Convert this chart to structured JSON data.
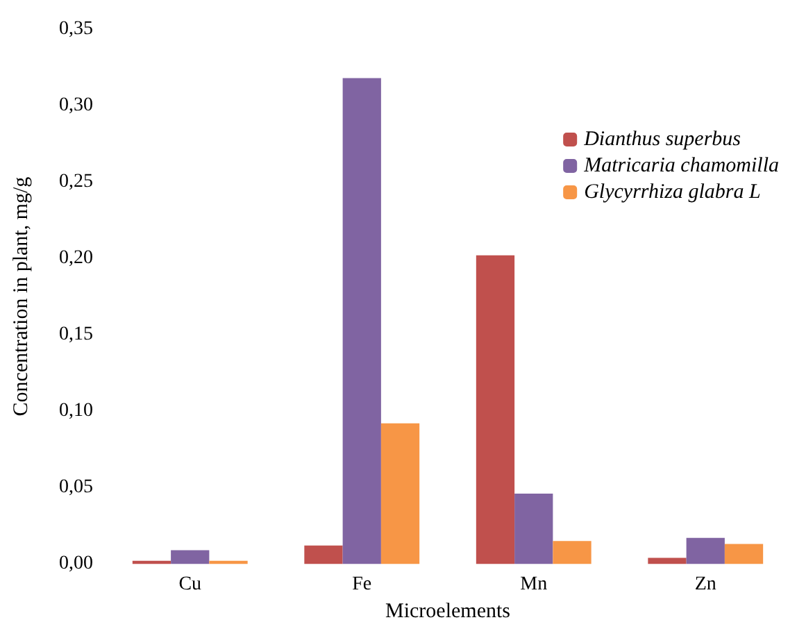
{
  "chart_data": {
    "type": "bar",
    "xlabel": "Microelements",
    "ylabel": "Concentration in plant, mg/g",
    "categories": [
      "Cu",
      "Fe",
      "Mn",
      "Zn"
    ],
    "series": [
      {
        "name": "Dianthus superbus",
        "color": "#c0504d",
        "values": [
          0.002,
          0.012,
          0.202,
          0.004
        ]
      },
      {
        "name": "Matricaria chamomilla",
        "color": "#8064a2",
        "values": [
          0.009,
          0.318,
          0.046,
          0.017
        ]
      },
      {
        "name": "Glycyrrhiza glabra L",
        "color": "#f79646",
        "values": [
          0.002,
          0.092,
          0.015,
          0.013
        ]
      }
    ],
    "ylim": [
      0,
      0.35
    ],
    "yticks": [
      {
        "value": 0,
        "label": "0,00"
      },
      {
        "value": 0.05,
        "label": "0,05"
      },
      {
        "value": 0.1,
        "label": "0,10"
      },
      {
        "value": 0.15,
        "label": "0,15"
      },
      {
        "value": 0.2,
        "label": "0,20"
      },
      {
        "value": 0.25,
        "label": "0,25"
      },
      {
        "value": 0.3,
        "label": "0,30"
      },
      {
        "value": 0.35,
        "label": "0,35"
      }
    ],
    "grid": false,
    "legend": "top right"
  }
}
